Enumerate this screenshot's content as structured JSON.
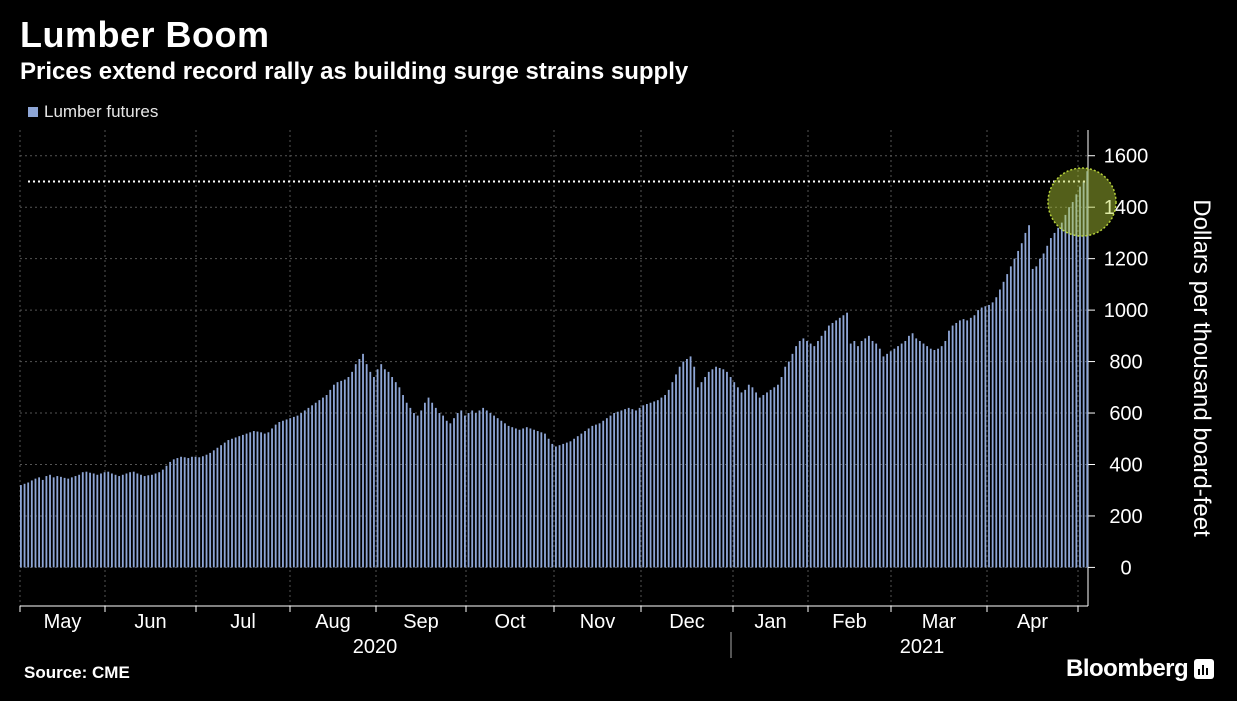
{
  "header": {
    "title": "Lumber Boom",
    "subtitle": "Prices extend record rally as building surge strains supply"
  },
  "legend": {
    "label": "Lumber futures",
    "color": "#8ea6d6"
  },
  "footer": {
    "source": "Source: CME",
    "brand": "Bloomberg"
  },
  "colors": {
    "background": "#000000",
    "bar": "#8ea6d6",
    "highlight": "#b7d23a",
    "reference_line": "#ffffff"
  },
  "chart_data": {
    "type": "bar",
    "series": [
      {
        "name": "Lumber futures",
        "values": [
          320,
          325,
          330,
          338,
          345,
          350,
          340,
          355,
          360,
          350,
          355,
          352,
          348,
          345,
          350,
          355,
          360,
          370,
          372,
          368,
          365,
          360,
          365,
          370,
          372,
          365,
          360,
          355,
          360,
          365,
          370,
          372,
          365,
          360,
          355,
          358,
          360,
          365,
          370,
          380,
          395,
          410,
          420,
          425,
          430,
          428,
          425,
          430,
          430,
          428,
          432,
          438,
          445,
          455,
          465,
          475,
          485,
          495,
          500,
          505,
          510,
          515,
          520,
          525,
          530,
          528,
          525,
          520,
          525,
          540,
          555,
          565,
          570,
          575,
          580,
          585,
          590,
          600,
          610,
          620,
          630,
          640,
          650,
          660,
          670,
          690,
          710,
          720,
          725,
          730,
          740,
          760,
          790,
          810,
          830,
          790,
          760,
          740,
          770,
          790,
          770,
          760,
          740,
          720,
          700,
          670,
          640,
          620,
          600,
          590,
          610,
          640,
          660,
          640,
          620,
          600,
          590,
          570,
          560,
          580,
          600,
          610,
          590,
          600,
          610,
          600,
          610,
          620,
          610,
          600,
          590,
          580,
          570,
          560,
          550,
          545,
          540,
          535,
          540,
          545,
          540,
          535,
          530,
          525,
          520,
          500,
          480,
          470,
          475,
          480,
          485,
          490,
          500,
          510,
          520,
          530,
          540,
          550,
          555,
          560,
          570,
          580,
          590,
          600,
          605,
          610,
          615,
          620,
          615,
          610,
          620,
          630,
          635,
          640,
          645,
          650,
          660,
          670,
          690,
          720,
          750,
          780,
          800,
          810,
          820,
          780,
          700,
          720,
          740,
          760,
          770,
          780,
          775,
          770,
          760,
          740,
          720,
          700,
          680,
          690,
          710,
          700,
          680,
          660,
          670,
          680,
          690,
          700,
          710,
          740,
          780,
          800,
          830,
          860,
          880,
          890,
          880,
          870,
          860,
          880,
          900,
          920,
          940,
          950,
          960,
          970,
          980,
          990,
          870,
          880,
          860,
          880,
          890,
          900,
          880,
          870,
          850,
          820,
          830,
          840,
          850,
          860,
          870,
          880,
          900,
          910,
          890,
          880,
          870,
          860,
          850,
          845,
          850,
          860,
          880,
          920,
          940,
          950,
          960,
          965,
          960,
          970,
          980,
          1000,
          1010,
          1015,
          1020,
          1030,
          1050,
          1080,
          1110,
          1140,
          1170,
          1200,
          1230,
          1260,
          1300,
          1330,
          1160,
          1170,
          1200,
          1220,
          1250,
          1280,
          1300,
          1320,
          1340,
          1370,
          1400,
          1420,
          1450,
          1480,
          1500,
          1540
        ]
      }
    ],
    "x_ticks": [
      "May",
      "Jun",
      "Jul",
      "Aug",
      "Sep",
      "Oct",
      "Nov",
      "Dec",
      "Jan",
      "Feb",
      "Mar",
      "Apr"
    ],
    "year_labels": [
      "2020",
      "2021"
    ],
    "ylabel": "Dollars per thousand board-feet",
    "y_ticks": [
      0,
      200,
      400,
      600,
      800,
      1000,
      1200,
      1400,
      1600
    ],
    "ylim": [
      -150,
      1700
    ],
    "reference_line": 1500,
    "grid": true,
    "legend_position": "top-left",
    "y_axis_position": "right"
  }
}
